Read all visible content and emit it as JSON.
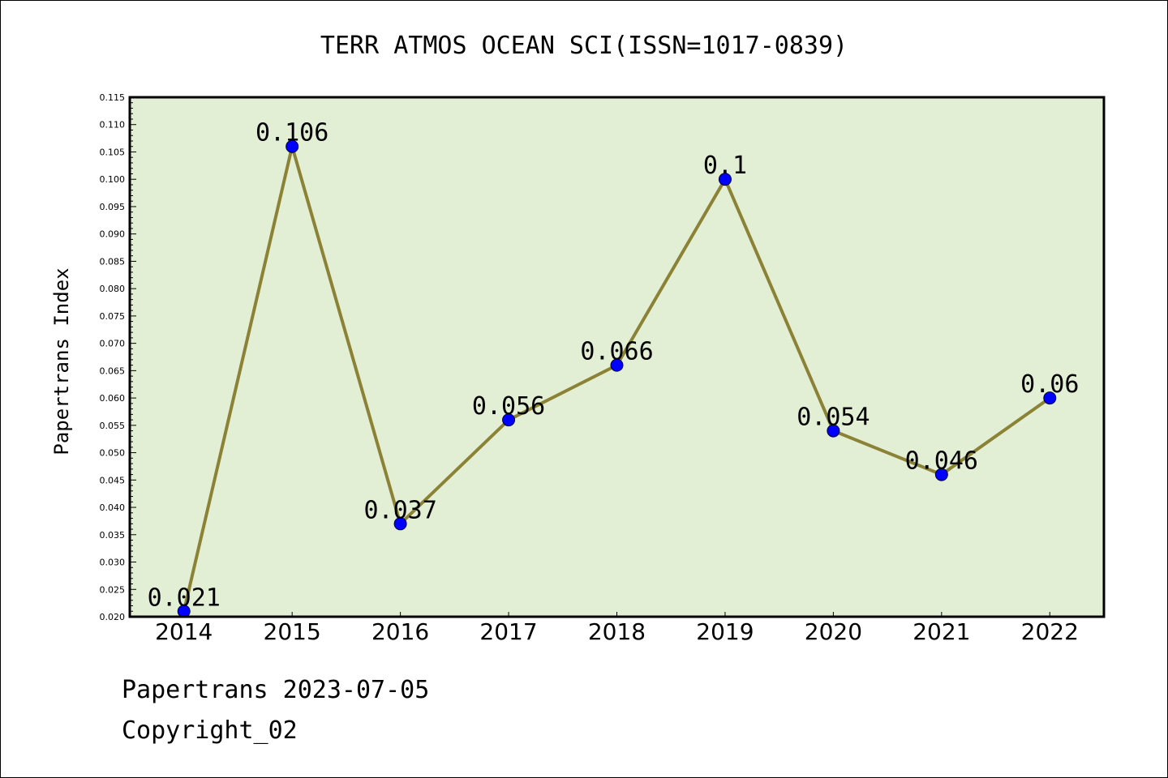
{
  "chart_data": {
    "type": "line",
    "title": "TERR ATMOS OCEAN SCI(ISSN=1017-0839)",
    "xlabel": "",
    "ylabel": "Papertrans Index",
    "categories": [
      "2014",
      "2015",
      "2016",
      "2017",
      "2018",
      "2019",
      "2020",
      "2021",
      "2022"
    ],
    "values": [
      0.021,
      0.106,
      0.037,
      0.056,
      0.066,
      0.1,
      0.054,
      0.046,
      0.06
    ],
    "data_labels": [
      "0.021",
      "0.106",
      "0.037",
      "0.056",
      "0.066",
      "0.1",
      "0.054",
      "0.046",
      "0.06"
    ],
    "ylim": [
      0.02,
      0.115
    ],
    "yticks": [
      "0.020",
      "0.025",
      "0.030",
      "0.035",
      "0.040",
      "0.045",
      "0.050",
      "0.055",
      "0.060",
      "0.065",
      "0.070",
      "0.075",
      "0.080",
      "0.085",
      "0.090",
      "0.095",
      "0.100",
      "0.105",
      "0.110",
      "0.115"
    ],
    "grid": false,
    "colors": {
      "plot_background": "#e2efd5",
      "line": "#8c8236",
      "marker": "#0000ff"
    }
  },
  "footer": {
    "line1": "Papertrans 2023-07-05",
    "line2": "Copyright_02"
  }
}
